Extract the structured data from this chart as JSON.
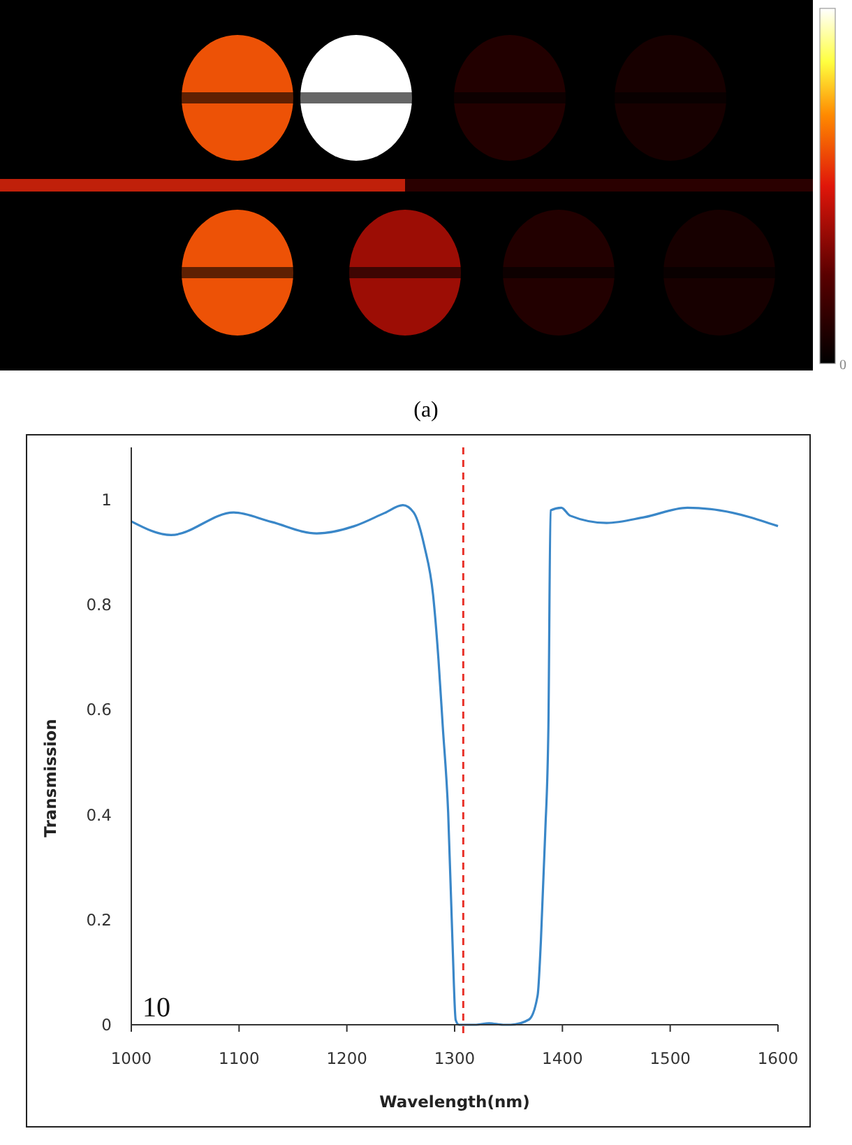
{
  "chart_data": [
    {
      "type": "other",
      "annotations": [
        "0",
        "(a)"
      ]
    },
    {
      "type": "line",
      "xlabel": "Wavelength(nm)",
      "ylabel": "Transmission",
      "xlim": [
        1000,
        1600
      ],
      "ylim": [
        0,
        1.1
      ],
      "xticks": [
        1000,
        1100,
        1200,
        1300,
        1400,
        1500,
        1600
      ],
      "yticks": [
        0,
        0.2,
        0.4,
        0.6,
        0.8,
        1
      ],
      "grid": false,
      "series": [
        {
          "color": "#3a87c8",
          "x": [
            1000,
            1037,
            1095,
            1130,
            1172,
            1207,
            1235,
            1252,
            1262,
            1272,
            1280,
            1285,
            1289,
            1294,
            1298,
            1301,
            1304,
            1320,
            1332,
            1345,
            1352,
            1369,
            1377,
            1380,
            1384,
            1387,
            1389,
            1399,
            1407,
            1441,
            1476,
            1516,
            1546,
            1600
          ],
          "values": [
            0.959,
            0.933,
            0.976,
            0.958,
            0.936,
            0.95,
            0.975,
            0.99,
            0.976,
            0.911,
            0.819,
            0.696,
            0.568,
            0.404,
            0.158,
            0.009,
            0,
            0,
            0.003,
            0,
            0,
            0.01,
            0.056,
            0.158,
            0.363,
            0.568,
            0.98,
            0.985,
            0.97,
            0.956,
            0.967,
            0.985,
            0.98,
            0.95
          ]
        }
      ],
      "ref_lines": [
        {
          "axis": "x",
          "value": 1308,
          "color": "#e8322a",
          "line_style": "dashed"
        }
      ],
      "annotations": [
        "10"
      ]
    }
  ]
}
